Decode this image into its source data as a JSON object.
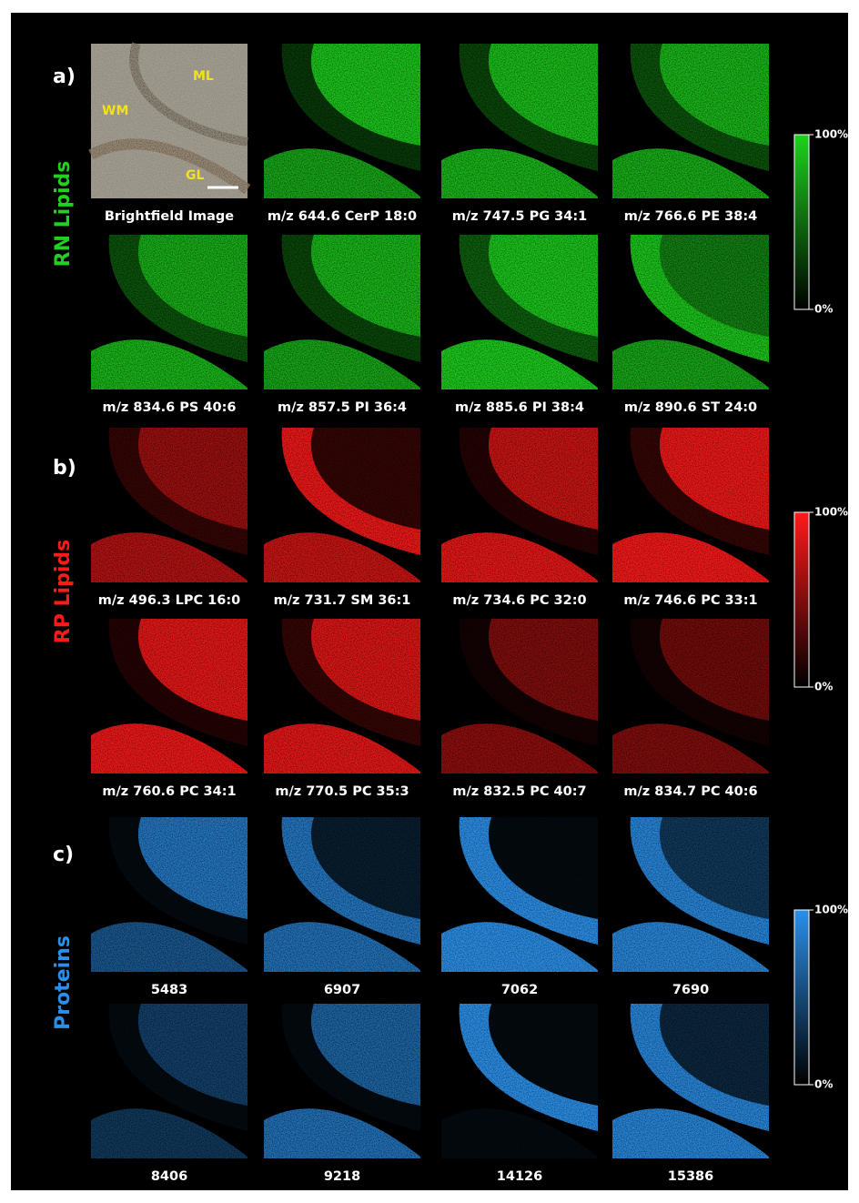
{
  "panels": [
    {
      "letter": "a)",
      "label": "RN Lipids",
      "color": "#1ed21e",
      "images": [
        {
          "caption": "Brightfield Image",
          "annotations": [
            "ML",
            "WM",
            "GL"
          ]
        },
        {
          "caption": "m/z  644.6 CerP 18:0"
        },
        {
          "caption": "m/z  747.5 PG 34:1"
        },
        {
          "caption": "m/z  766.6 PE 38:4"
        },
        {
          "caption": "m/z  834.6 PS 40:6"
        },
        {
          "caption": "m/z  857.5 PI 36:4"
        },
        {
          "caption": "m/z  885.6 PI 38:4"
        },
        {
          "caption": "m/z  890.6 ST 24:0"
        }
      ],
      "colorbar": {
        "max": "100%",
        "min": "0%"
      }
    },
    {
      "letter": "b)",
      "label": "RP Lipids",
      "color": "#ff1a1a",
      "images": [
        {
          "caption": "m/z  496.3 LPC 16:0"
        },
        {
          "caption": "m/z  731.7 SM 36:1"
        },
        {
          "caption": "m/z  734.6 PC 32:0"
        },
        {
          "caption": "m/z  746.6 PC 33:1"
        },
        {
          "caption": "m/z  760.6 PC 34:1"
        },
        {
          "caption": "m/z  770.5 PC 35:3"
        },
        {
          "caption": "m/z  832.5 PC 40:7"
        },
        {
          "caption": "m/z  834.7 PC 40:6"
        }
      ],
      "colorbar": {
        "max": "100%",
        "min": "0%"
      }
    },
    {
      "letter": "c)",
      "label": "Proteins",
      "color": "#2b8fe8",
      "images": [
        {
          "caption": "5483"
        },
        {
          "caption": "6907"
        },
        {
          "caption": "7062"
        },
        {
          "caption": "7690"
        },
        {
          "caption": "8406"
        },
        {
          "caption": "9218"
        },
        {
          "caption": "14126"
        },
        {
          "caption": "15386"
        }
      ],
      "colorbar": {
        "max": "100%",
        "min": "0%"
      }
    }
  ]
}
